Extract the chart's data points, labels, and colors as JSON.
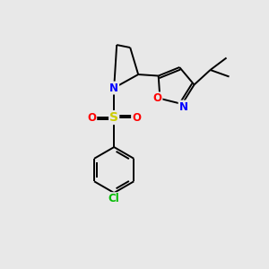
{
  "background_color": "#e8e8e8",
  "bond_color": "#000000",
  "atom_colors": {
    "N": "#0000ff",
    "O": "#ff0000",
    "S": "#cccc00",
    "Cl": "#00bb00",
    "C": "#000000"
  },
  "font_size": 8.5,
  "lw": 1.4,
  "figsize": [
    3.0,
    3.0
  ],
  "dpi": 100
}
